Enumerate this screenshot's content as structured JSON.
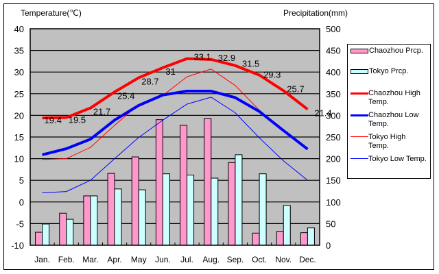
{
  "chart_data": {
    "type": "bar+line",
    "title": "",
    "categories": [
      "Jan.",
      "Feb.",
      "Mar.",
      "Apr.",
      "May",
      "Jun.",
      "Jul.",
      "Aug.",
      "Sep.",
      "Oct.",
      "Nov.",
      "Dec."
    ],
    "left_axis": {
      "label": "Temperature(℃)",
      "range": [
        -10,
        40
      ],
      "ticks": [
        "40",
        "35",
        "30",
        "25",
        "20",
        "15",
        "10",
        "5",
        "0",
        "-5",
        "-10"
      ]
    },
    "right_axis": {
      "label": "Precipitation(mm)",
      "range": [
        0,
        500
      ],
      "ticks": [
        "500",
        "450",
        "400",
        "350",
        "300",
        "250",
        "200",
        "150",
        "100",
        "50",
        "0"
      ]
    },
    "grid": true,
    "legend_position": "right",
    "bar_series": [
      {
        "name": "Chaozhou Prcp.",
        "color": "#ff99cc",
        "values": [
          30,
          74,
          114,
          166,
          204,
          290,
          277,
          293,
          191,
          28,
          32,
          29
        ]
      },
      {
        "name": "Tokyo Prcp.",
        "color": "#ccffff",
        "values": [
          49,
          60,
          114,
          130,
          128,
          165,
          162,
          155,
          209,
          165,
          92,
          40
        ]
      }
    ],
    "line_series": [
      {
        "name": "Chaozhou High Temp.",
        "color": "#ff0000",
        "weight": "thick",
        "values": [
          19.4,
          19.5,
          21.7,
          25.4,
          28.7,
          31,
          33.1,
          32.9,
          31.5,
          29.3,
          25.7,
          21.4
        ],
        "labels": [
          "19.4",
          "19.5",
          "21.7",
          "25.4",
          "28.7",
          "31",
          "33.1",
          "32.9",
          "31.5",
          "29.3",
          "25.7",
          "21.4"
        ]
      },
      {
        "name": "Chaozhou Low Temp.",
        "color": "#0000ff",
        "weight": "thick",
        "values": [
          10.9,
          12.3,
          14.5,
          18.9,
          22.3,
          24.7,
          25.6,
          25.6,
          24.1,
          20.9,
          16.5,
          12.2
        ]
      },
      {
        "name": "Tokyo High Temp.",
        "color": "#ff0000",
        "weight": "thin",
        "values": [
          9.8,
          10.0,
          12.6,
          17.7,
          22.5,
          24.6,
          28.9,
          30.7,
          26.9,
          21.2,
          16.5,
          12.1
        ]
      },
      {
        "name": "Tokyo Low Temp.",
        "color": "#0000ff",
        "weight": "thin",
        "values": [
          2.1,
          2.4,
          5.0,
          10.0,
          14.9,
          18.9,
          22.6,
          24.2,
          20.6,
          14.8,
          9.5,
          5.0
        ]
      }
    ],
    "legend": [
      {
        "label": "Chaozhou Prcp.",
        "kind": "box",
        "color": "#ff99cc"
      },
      {
        "label": "Tokyo Prcp.",
        "kind": "box",
        "color": "#ccffff"
      },
      {
        "label": "Chaozhou High Temp.",
        "kind": "thick-line",
        "color": "#ff0000"
      },
      {
        "label": "Chaozhou Low Temp.",
        "kind": "thick-line",
        "color": "#0000ff"
      },
      {
        "label": "Tokyo High Temp.",
        "kind": "thin-line",
        "color": "#ff0000"
      },
      {
        "label": "Tokyo Low Temp.",
        "kind": "thin-line",
        "color": "#0000ff"
      }
    ],
    "plot_background": "#c0c0c0"
  }
}
